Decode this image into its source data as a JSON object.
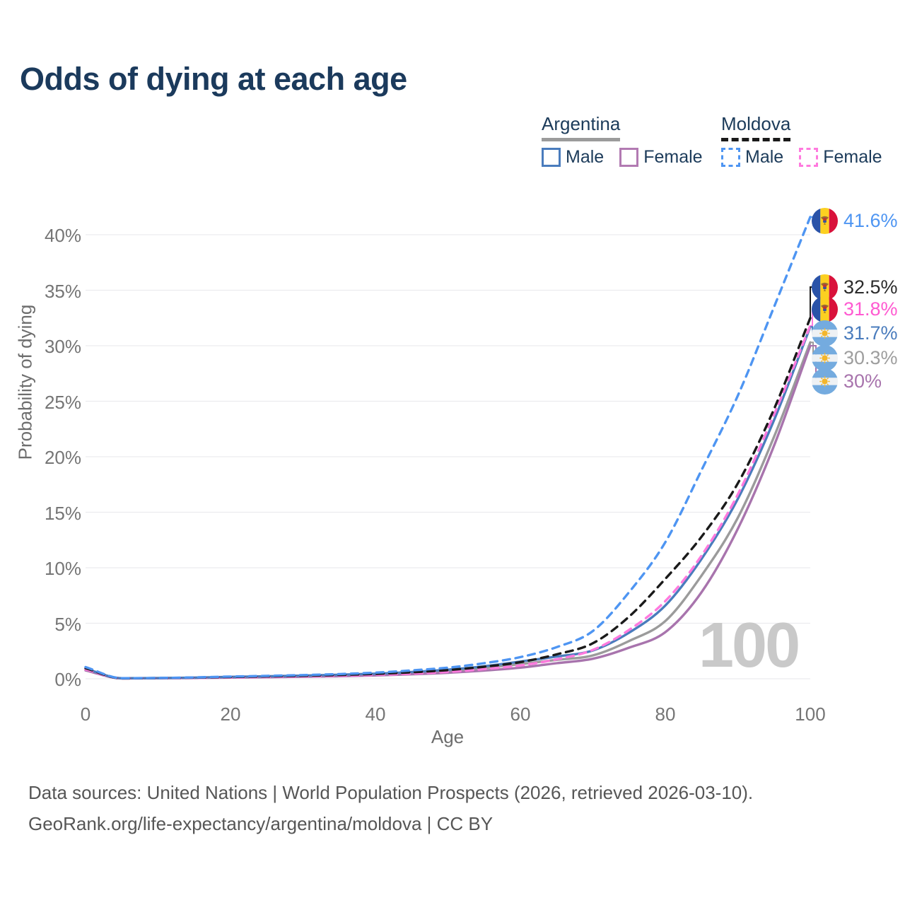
{
  "title": "Odds of dying at each age",
  "legend": {
    "groups": [
      {
        "label": "Argentina",
        "line_style": "solid",
        "line_color": "#9b9b9b",
        "items": [
          {
            "label": "Male",
            "color": "#4a7cbd",
            "style": "solid"
          },
          {
            "label": "Female",
            "color": "#b27ab2",
            "style": "solid"
          }
        ]
      },
      {
        "label": "Moldova",
        "line_style": "dashed",
        "line_color": "#1a1a1a",
        "items": [
          {
            "label": "Male",
            "color": "#4e95f2",
            "style": "dashed"
          },
          {
            "label": "Female",
            "color": "#ff7ade",
            "style": "dashed"
          }
        ]
      }
    ]
  },
  "axes": {
    "y_label": "Probability of dying",
    "x_label": "Age",
    "y_ticks": [
      "0%",
      "5%",
      "10%",
      "15%",
      "20%",
      "25%",
      "30%",
      "35%",
      "40%"
    ],
    "x_ticks": [
      "0",
      "20",
      "40",
      "60",
      "80",
      "100"
    ]
  },
  "watermark": "100",
  "end_labels": [
    {
      "value": "41.6%",
      "flag": "moldova",
      "color": "#4e95f2"
    },
    {
      "value": "32.5%",
      "flag": "moldova",
      "color": "#2b2b2b"
    },
    {
      "value": "31.8%",
      "flag": "moldova",
      "color": "#ff5ad1"
    },
    {
      "value": "31.7%",
      "flag": "argentina",
      "color": "#4a7cbd"
    },
    {
      "value": "30.3%",
      "flag": "argentina",
      "color": "#9e9e9e"
    },
    {
      "value": "30%",
      "flag": "argentina",
      "color": "#a874ad"
    }
  ],
  "footer": {
    "line1": "Data sources: United Nations | World Population Prospects (2026, retrieved 2026-03-10).",
    "line2": "GeoRank.org/life-expectancy/argentina/moldova | CC BY"
  },
  "chart_data": {
    "type": "line",
    "title": "Odds of dying at each age",
    "xlabel": "Age",
    "ylabel": "Probability of dying",
    "xlim": [
      0,
      100
    ],
    "ylim": [
      0,
      42
    ],
    "x_ticks": [
      0,
      20,
      40,
      60,
      80,
      100
    ],
    "y_ticks_percent": [
      0,
      5,
      10,
      15,
      20,
      25,
      30,
      35,
      40
    ],
    "grid": "horizontal",
    "legend_position": "top-right",
    "x": [
      0,
      5,
      10,
      15,
      20,
      25,
      30,
      35,
      40,
      45,
      50,
      55,
      60,
      65,
      70,
      75,
      80,
      85,
      90,
      95,
      100
    ],
    "series": [
      {
        "name": "Moldova Male",
        "country": "Moldova",
        "sex": "Male",
        "style": "dashed",
        "color": "#4e95f2",
        "end_label": "41.6%",
        "values": [
          1.05,
          0.05,
          0.07,
          0.12,
          0.2,
          0.26,
          0.33,
          0.42,
          0.55,
          0.75,
          1.0,
          1.4,
          1.95,
          2.85,
          4.3,
          7.8,
          12.3,
          18.8,
          25.5,
          33.5,
          41.6
        ]
      },
      {
        "name": "Moldova Both sexes",
        "country": "Moldova",
        "sex": "Both",
        "style": "dashed",
        "color": "#1a1a1a",
        "end_label": "32.5%",
        "values": [
          0.95,
          0.04,
          0.06,
          0.1,
          0.16,
          0.21,
          0.27,
          0.34,
          0.44,
          0.58,
          0.78,
          1.08,
          1.5,
          2.2,
          3.2,
          5.6,
          9.0,
          12.8,
          17.6,
          24.3,
          32.5
        ]
      },
      {
        "name": "Moldova Female",
        "country": "Moldova",
        "sex": "Female",
        "style": "dashed",
        "color": "#ff7ade",
        "end_label": "31.8%",
        "values": [
          0.85,
          0.04,
          0.05,
          0.08,
          0.12,
          0.16,
          0.21,
          0.27,
          0.35,
          0.46,
          0.62,
          0.87,
          1.2,
          1.75,
          2.6,
          4.4,
          7.0,
          11.1,
          16.6,
          23.8,
          31.8
        ]
      },
      {
        "name": "Argentina Male",
        "country": "Argentina",
        "sex": "Male",
        "style": "solid",
        "color": "#4a7cbd",
        "end_label": "31.7%",
        "values": [
          0.9,
          0.05,
          0.06,
          0.1,
          0.17,
          0.22,
          0.28,
          0.36,
          0.46,
          0.61,
          0.82,
          1.12,
          1.55,
          2.0,
          2.55,
          4.15,
          6.6,
          10.8,
          16.2,
          23.3,
          31.7
        ]
      },
      {
        "name": "Argentina Both sexes",
        "country": "Argentina",
        "sex": "Both",
        "style": "solid",
        "color": "#9b9b9b",
        "end_label": "30.3%",
        "values": [
          0.85,
          0.04,
          0.055,
          0.09,
          0.14,
          0.19,
          0.24,
          0.31,
          0.4,
          0.53,
          0.71,
          0.97,
          1.32,
          1.7,
          2.1,
          3.4,
          5.2,
          9.3,
          14.5,
          21.8,
          30.3
        ]
      },
      {
        "name": "Argentina Female",
        "country": "Argentina",
        "sex": "Female",
        "style": "solid",
        "color": "#a874ad",
        "end_label": "30%",
        "values": [
          0.75,
          0.03,
          0.045,
          0.07,
          0.11,
          0.14,
          0.18,
          0.23,
          0.3,
          0.4,
          0.54,
          0.74,
          1.0,
          1.4,
          1.8,
          2.8,
          4.2,
          7.8,
          13.5,
          21.0,
          30.0
        ]
      }
    ]
  }
}
